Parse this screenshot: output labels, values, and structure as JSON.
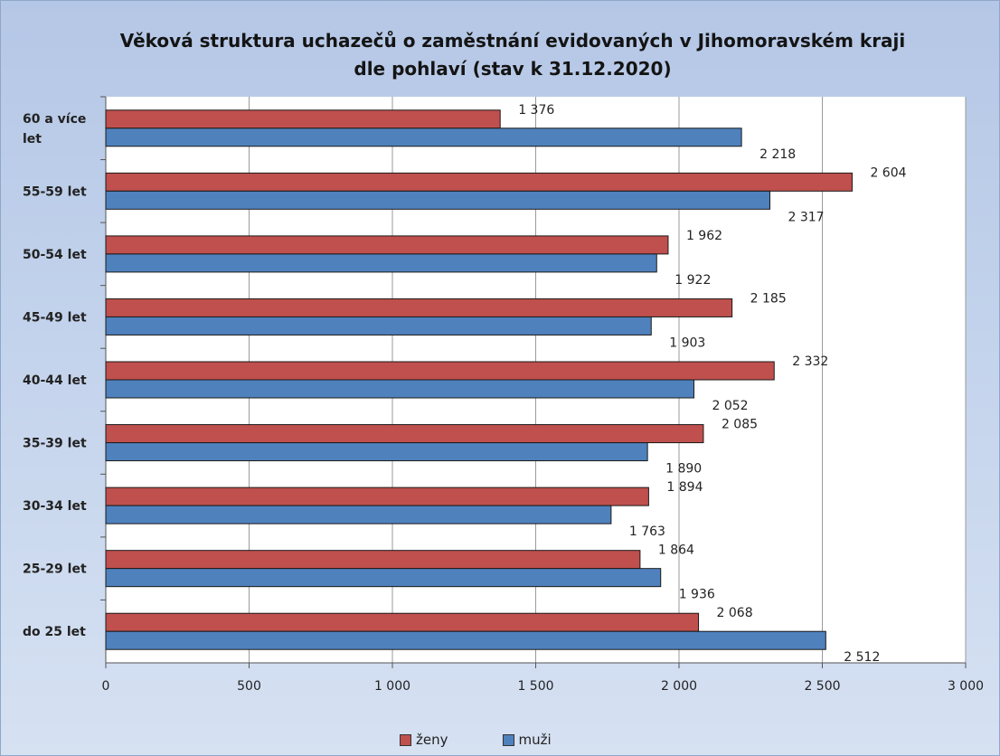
{
  "chart_data": {
    "type": "bar",
    "orientation": "horizontal",
    "title": "Věková struktura uchazečů o zaměstnání evidovaných v Jihomoravském kraji dle pohlaví (stav k 31.12.2020)",
    "title_lines": [
      "Věková struktura uchazečů o zaměstnání evidovaných v Jihomoravském kraji",
      "dle pohlaví (stav k 31.12.2020)"
    ],
    "categories": [
      "do 25 let",
      "25-29 let",
      "30-34 let",
      "35-39 let",
      "40-44 let",
      "45-49 let",
      "50-54 let",
      "55-59 let",
      "60 a více let"
    ],
    "category_label_lines": [
      [
        "do 25 let"
      ],
      [
        "25-29 let"
      ],
      [
        "30-34 let"
      ],
      [
        "35-39 let"
      ],
      [
        "40-44 let"
      ],
      [
        "45-49 let"
      ],
      [
        "50-54 let"
      ],
      [
        "55-59 let"
      ],
      [
        "60 a více",
        "let"
      ]
    ],
    "series": [
      {
        "name": "ženy",
        "color": "#c0504d",
        "values": [
          2068,
          1864,
          1894,
          2085,
          2332,
          2185,
          1962,
          2604,
          1376
        ],
        "labels": [
          "2 068",
          "1 864",
          "1 894",
          "2 085",
          "2 332",
          "2 185",
          "1 962",
          "2 604",
          "1 376"
        ]
      },
      {
        "name": "muži",
        "color": "#4f81bd",
        "values": [
          2512,
          1936,
          1763,
          1890,
          2052,
          1903,
          1922,
          2317,
          2218
        ],
        "labels": [
          "2 512",
          "1 936",
          "1 763",
          "1 890",
          "2 052",
          "1 903",
          "1 922",
          "2 317",
          "2 218"
        ]
      }
    ],
    "xlim": [
      0,
      3000
    ],
    "x_ticks": [
      0,
      500,
      1000,
      1500,
      2000,
      2500,
      3000
    ],
    "x_tick_labels": [
      "0",
      "500",
      "1 000",
      "1 500",
      "2 000",
      "2 500",
      "3 000"
    ],
    "grid": "vertical",
    "legend": "bottom"
  }
}
